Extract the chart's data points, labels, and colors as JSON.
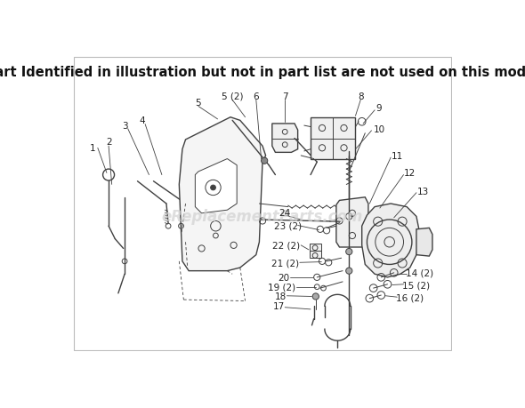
{
  "title": "Part Identified in illustration but not in part list are not used on this model",
  "title_fontsize": 10.5,
  "title_fontweight": "bold",
  "watermark": "eReplacementParts.com",
  "background_color": "#ffffff",
  "line_color": "#404040",
  "label_color": "#222222",
  "watermark_color": "#cccccc",
  "border_color": "#cccccc"
}
